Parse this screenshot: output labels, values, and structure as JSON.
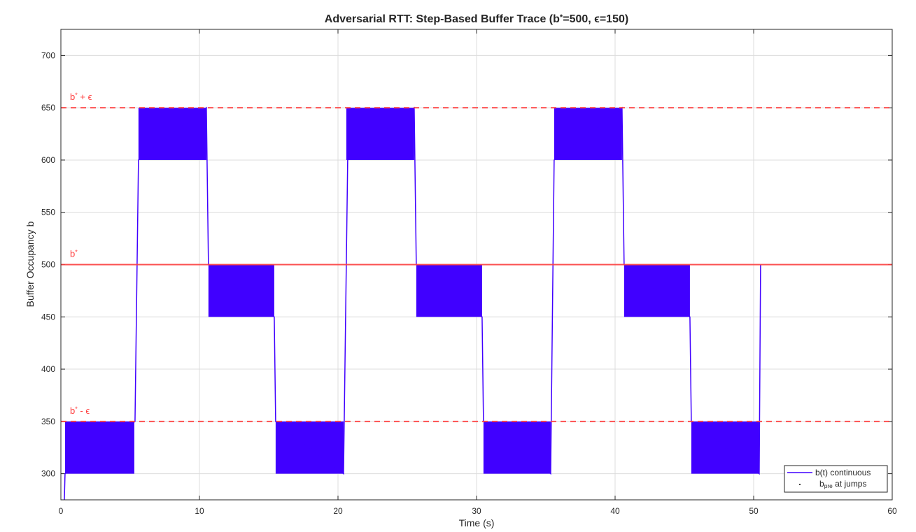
{
  "chart_data": {
    "type": "line",
    "title": [
      "Adversarial RTT: Step-Based Buffer Trace (b",
      "*",
      "=500, ϵ=150)"
    ],
    "xlabel": "Time (s)",
    "ylabel": "Buffer Occupancy b",
    "xlim": [
      0,
      60
    ],
    "xticks": [
      0,
      10,
      20,
      30,
      40,
      50,
      60
    ],
    "ylim": [
      275,
      725
    ],
    "yticks": [
      300,
      350,
      400,
      450,
      500,
      550,
      600,
      650,
      700
    ],
    "grid": true,
    "legend": "lower right",
    "series": [
      {
        "name": "b(t) continuous",
        "color": "#4000ff",
        "x": [
          0.25,
          0.3,
          5.35,
          5.6,
          10.5,
          10.55,
          10.6,
          10.65,
          15.4,
          15.45,
          15.5,
          20.4,
          20.7,
          25.5,
          25.55,
          25.6,
          25.65,
          30.4,
          30.45,
          30.5,
          35.35,
          35.6,
          40.5,
          40.55,
          40.6,
          40.65,
          45.4,
          45.45,
          45.5,
          50.4,
          50.5
        ],
        "values": [
          275,
          300,
          350,
          600,
          650,
          600,
          550,
          500,
          450,
          400,
          350,
          300,
          600,
          650,
          600,
          550,
          500,
          450,
          400,
          350,
          300,
          600,
          650,
          600,
          550,
          500,
          450,
          400,
          350,
          300,
          500
        ]
      },
      {
        "name": [
          "b",
          "pre",
          " at jumps"
        ],
        "color": "#000000",
        "x": [],
        "values": []
      }
    ],
    "bands": [
      {
        "x": [
          0.3,
          5.3
        ],
        "y": [
          300,
          350
        ]
      },
      {
        "x": [
          5.6,
          10.5
        ],
        "y": [
          600,
          650
        ]
      },
      {
        "x": [
          10.65,
          15.4
        ],
        "y": [
          450,
          500
        ]
      },
      {
        "x": [
          15.5,
          20.4
        ],
        "y": [
          300,
          350
        ]
      },
      {
        "x": [
          20.6,
          25.5
        ],
        "y": [
          600,
          650
        ]
      },
      {
        "x": [
          25.65,
          30.4
        ],
        "y": [
          450,
          500
        ]
      },
      {
        "x": [
          30.5,
          35.35
        ],
        "y": [
          300,
          350
        ]
      },
      {
        "x": [
          35.6,
          40.5
        ],
        "y": [
          600,
          650
        ]
      },
      {
        "x": [
          40.65,
          45.4
        ],
        "y": [
          450,
          500
        ]
      },
      {
        "x": [
          45.5,
          50.4
        ],
        "y": [
          300,
          350
        ]
      }
    ],
    "ref_lines": [
      {
        "value": 650,
        "label": [
          "b",
          "*",
          " + ϵ"
        ],
        "style": "dashed",
        "color": "#ff4040"
      },
      {
        "value": 500,
        "label": [
          "b",
          "*"
        ],
        "style": "solid",
        "color": "#ff4040"
      },
      {
        "value": 350,
        "label": [
          "b",
          "*",
          " - ϵ"
        ],
        "style": "dashed",
        "color": "#ff4040"
      }
    ]
  }
}
